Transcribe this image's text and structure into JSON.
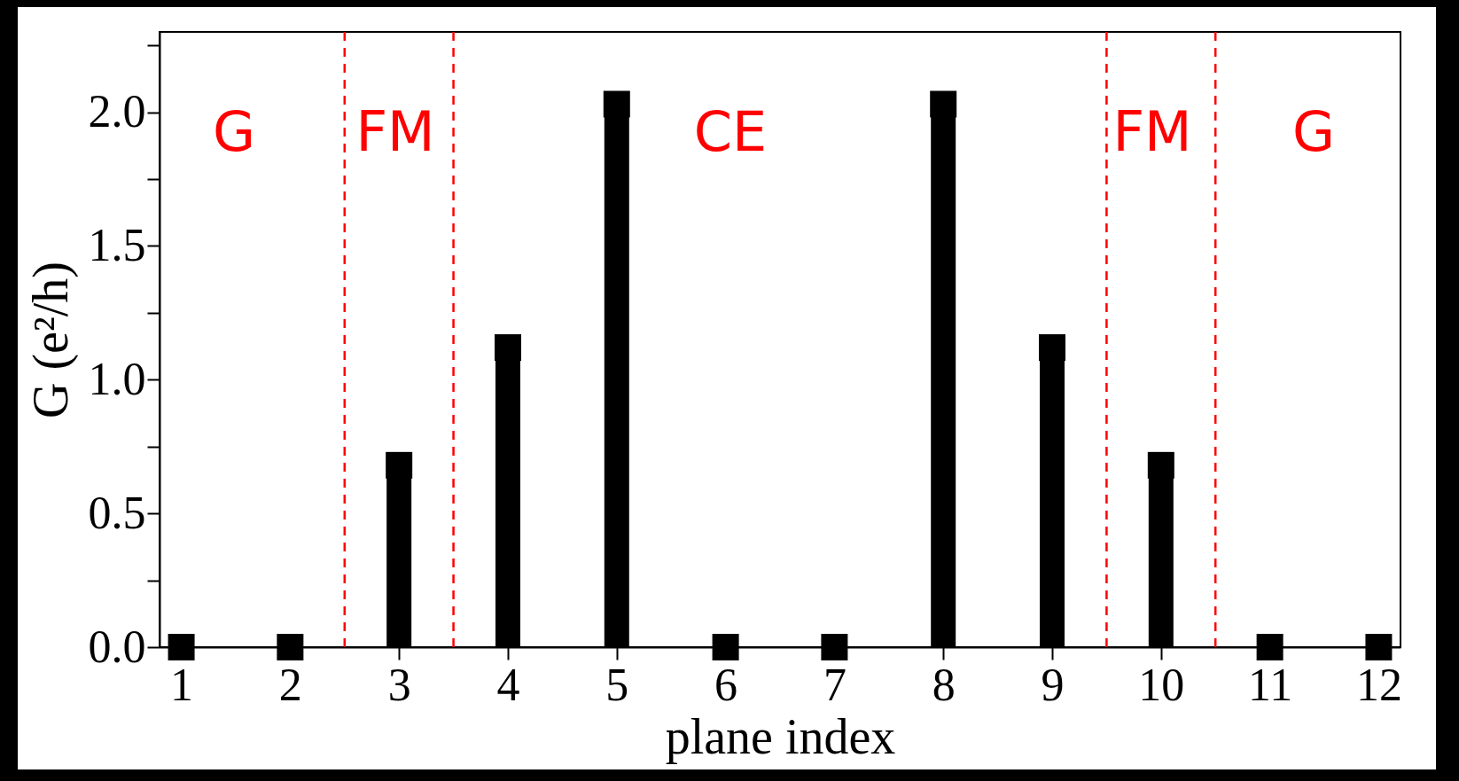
{
  "chart_data": {
    "type": "lollipop",
    "xlabel": "plane index",
    "ylabel": "G (e²/h)",
    "x": [
      1,
      2,
      3,
      4,
      5,
      6,
      7,
      8,
      9,
      10,
      11,
      12
    ],
    "series": [
      {
        "color": "#000000",
        "values": [
          0,
          0,
          0.68,
          1.12,
          2.03,
          0,
          0,
          2.03,
          1.12,
          0.68,
          0,
          0
        ]
      }
    ],
    "marker": "square",
    "xlim": [
      0.8,
      12.2
    ],
    "xticks": [
      1,
      2,
      3,
      4,
      5,
      6,
      7,
      8,
      9,
      10,
      11,
      12
    ],
    "ylim": [
      0,
      2.3
    ],
    "yticks": [
      {
        "value": 0,
        "label": "0.0"
      },
      {
        "value": 0.25,
        "label": null
      },
      {
        "value": 0.5,
        "label": "0.5"
      },
      {
        "value": 0.75,
        "label": null
      },
      {
        "value": 1,
        "label": "1.0"
      },
      {
        "value": 1.25,
        "label": null
      },
      {
        "value": 1.5,
        "label": "1.5"
      },
      {
        "value": 1.75,
        "label": null
      },
      {
        "value": 2,
        "label": "2.0"
      },
      {
        "value": 2.25,
        "label": null
      }
    ],
    "ref_lines": [
      {
        "axis": "x",
        "value": 2.5,
        "color": "#ff0000",
        "line_style": "dashed"
      },
      {
        "axis": "x",
        "value": 3.5,
        "color": "#ff0000",
        "line_style": "dashed"
      },
      {
        "axis": "x",
        "value": 9.5,
        "color": "#ff0000",
        "line_style": "dashed"
      },
      {
        "axis": "x",
        "value": 10.5,
        "color": "#ff0000",
        "line_style": "dashed"
      }
    ],
    "annotations": [
      "G",
      "FM",
      "CE",
      "FM",
      "G"
    ]
  }
}
